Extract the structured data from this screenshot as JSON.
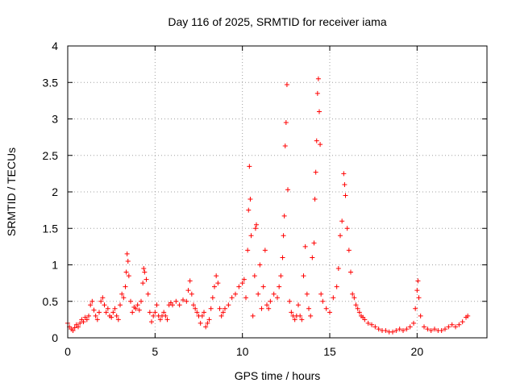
{
  "chart_data": {
    "type": "scatter",
    "title": "Day 116 of 2025, SRMTID for receiver iama",
    "xlabel": "GPS time / hours",
    "ylabel": "SRMTID / TECUs",
    "xlim": [
      0,
      24
    ],
    "ylim": [
      0,
      4
    ],
    "xticks": [
      0,
      5,
      10,
      15,
      20
    ],
    "yticks": [
      0,
      0.5,
      1,
      1.5,
      2,
      2.5,
      3,
      3.5,
      4
    ],
    "xtick_labels": [
      "0",
      "5",
      "10",
      "15",
      "20"
    ],
    "ytick_labels": [
      "0",
      "0.5",
      "1",
      "1.5",
      "2",
      "2.5",
      "3",
      "3.5",
      "4"
    ],
    "grid": true,
    "marker": "+",
    "color": "#ff0000",
    "series": [
      {
        "name": "SRMTID",
        "points": [
          [
            0.0,
            0.2
          ],
          [
            0.1,
            0.15
          ],
          [
            0.2,
            0.12
          ],
          [
            0.3,
            0.1
          ],
          [
            0.4,
            0.14
          ],
          [
            0.5,
            0.18
          ],
          [
            0.6,
            0.15
          ],
          [
            0.7,
            0.2
          ],
          [
            0.8,
            0.25
          ],
          [
            0.9,
            0.22
          ],
          [
            1.0,
            0.28
          ],
          [
            1.1,
            0.25
          ],
          [
            1.2,
            0.3
          ],
          [
            1.3,
            0.45
          ],
          [
            1.4,
            0.5
          ],
          [
            1.5,
            0.38
          ],
          [
            1.6,
            0.3
          ],
          [
            1.7,
            0.25
          ],
          [
            1.8,
            0.35
          ],
          [
            1.9,
            0.5
          ],
          [
            2.0,
            0.55
          ],
          [
            2.1,
            0.45
          ],
          [
            2.2,
            0.35
          ],
          [
            2.3,
            0.4
          ],
          [
            2.4,
            0.3
          ],
          [
            2.5,
            0.28
          ],
          [
            2.6,
            0.35
          ],
          [
            2.7,
            0.4
          ],
          [
            2.8,
            0.3
          ],
          [
            2.9,
            0.25
          ],
          [
            3.0,
            0.45
          ],
          [
            3.1,
            0.6
          ],
          [
            3.2,
            0.55
          ],
          [
            3.3,
            0.7
          ],
          [
            3.35,
            0.9
          ],
          [
            3.4,
            1.15
          ],
          [
            3.45,
            1.05
          ],
          [
            3.5,
            0.85
          ],
          [
            3.6,
            0.5
          ],
          [
            3.7,
            0.35
          ],
          [
            3.8,
            0.42
          ],
          [
            3.9,
            0.4
          ],
          [
            4.0,
            0.45
          ],
          [
            4.1,
            0.38
          ],
          [
            4.2,
            0.5
          ],
          [
            4.3,
            0.75
          ],
          [
            4.35,
            0.95
          ],
          [
            4.4,
            0.9
          ],
          [
            4.5,
            0.8
          ],
          [
            4.6,
            0.6
          ],
          [
            4.7,
            0.35
          ],
          [
            4.8,
            0.22
          ],
          [
            4.9,
            0.3
          ],
          [
            5.0,
            0.35
          ],
          [
            5.1,
            0.45
          ],
          [
            5.2,
            0.3
          ],
          [
            5.3,
            0.25
          ],
          [
            5.4,
            0.3
          ],
          [
            5.5,
            0.35
          ],
          [
            5.6,
            0.3
          ],
          [
            5.7,
            0.25
          ],
          [
            5.8,
            0.45
          ],
          [
            5.9,
            0.48
          ],
          [
            6.0,
            0.45
          ],
          [
            6.2,
            0.5
          ],
          [
            6.4,
            0.45
          ],
          [
            6.6,
            0.52
          ],
          [
            6.8,
            0.5
          ],
          [
            6.9,
            0.65
          ],
          [
            7.0,
            0.78
          ],
          [
            7.1,
            0.6
          ],
          [
            7.2,
            0.45
          ],
          [
            7.3,
            0.4
          ],
          [
            7.4,
            0.35
          ],
          [
            7.5,
            0.3
          ],
          [
            7.6,
            0.2
          ],
          [
            7.7,
            0.3
          ],
          [
            7.8,
            0.35
          ],
          [
            7.9,
            0.15
          ],
          [
            8.0,
            0.2
          ],
          [
            8.1,
            0.25
          ],
          [
            8.2,
            0.4
          ],
          [
            8.3,
            0.55
          ],
          [
            8.4,
            0.7
          ],
          [
            8.5,
            0.85
          ],
          [
            8.6,
            0.75
          ],
          [
            8.7,
            0.4
          ],
          [
            8.8,
            0.3
          ],
          [
            8.9,
            0.35
          ],
          [
            9.0,
            0.4
          ],
          [
            9.2,
            0.45
          ],
          [
            9.4,
            0.55
          ],
          [
            9.6,
            0.6
          ],
          [
            9.8,
            0.7
          ],
          [
            10.0,
            0.75
          ],
          [
            10.1,
            0.8
          ],
          [
            10.2,
            0.55
          ],
          [
            10.3,
            1.2
          ],
          [
            10.35,
            1.75
          ],
          [
            10.4,
            2.35
          ],
          [
            10.45,
            1.9
          ],
          [
            10.5,
            1.4
          ],
          [
            10.6,
            0.3
          ],
          [
            10.7,
            0.85
          ],
          [
            10.75,
            1.5
          ],
          [
            10.8,
            1.55
          ],
          [
            10.9,
            0.6
          ],
          [
            11.0,
            1.0
          ],
          [
            11.1,
            0.4
          ],
          [
            11.2,
            0.7
          ],
          [
            11.3,
            1.2
          ],
          [
            11.4,
            0.45
          ],
          [
            11.5,
            0.4
          ],
          [
            11.6,
            0.5
          ],
          [
            11.8,
            0.6
          ],
          [
            12.0,
            0.55
          ],
          [
            12.1,
            0.7
          ],
          [
            12.2,
            0.85
          ],
          [
            12.3,
            1.1
          ],
          [
            12.35,
            1.4
          ],
          [
            12.4,
            1.67
          ],
          [
            12.45,
            2.63
          ],
          [
            12.5,
            2.95
          ],
          [
            12.55,
            3.47
          ],
          [
            12.6,
            2.03
          ],
          [
            12.7,
            0.5
          ],
          [
            12.8,
            0.35
          ],
          [
            12.9,
            0.3
          ],
          [
            13.0,
            0.25
          ],
          [
            13.1,
            0.3
          ],
          [
            13.2,
            0.45
          ],
          [
            13.3,
            0.3
          ],
          [
            13.4,
            0.25
          ],
          [
            13.5,
            0.85
          ],
          [
            13.6,
            1.25
          ],
          [
            13.7,
            0.6
          ],
          [
            13.8,
            0.4
          ],
          [
            13.9,
            0.3
          ],
          [
            14.0,
            1.1
          ],
          [
            14.1,
            1.3
          ],
          [
            14.15,
            1.9
          ],
          [
            14.2,
            2.27
          ],
          [
            14.25,
            2.7
          ],
          [
            14.3,
            3.35
          ],
          [
            14.35,
            3.55
          ],
          [
            14.4,
            3.1
          ],
          [
            14.45,
            2.65
          ],
          [
            14.5,
            0.6
          ],
          [
            14.6,
            0.5
          ],
          [
            14.8,
            0.4
          ],
          [
            15.0,
            0.35
          ],
          [
            15.2,
            0.55
          ],
          [
            15.4,
            0.7
          ],
          [
            15.5,
            0.95
          ],
          [
            15.6,
            1.4
          ],
          [
            15.7,
            1.6
          ],
          [
            15.8,
            2.25
          ],
          [
            15.85,
            2.1
          ],
          [
            15.9,
            1.95
          ],
          [
            16.0,
            1.5
          ],
          [
            16.1,
            1.2
          ],
          [
            16.2,
            0.9
          ],
          [
            16.3,
            0.6
          ],
          [
            16.4,
            0.55
          ],
          [
            16.5,
            0.45
          ],
          [
            16.6,
            0.4
          ],
          [
            16.7,
            0.35
          ],
          [
            16.8,
            0.3
          ],
          [
            16.9,
            0.28
          ],
          [
            17.0,
            0.25
          ],
          [
            17.2,
            0.2
          ],
          [
            17.4,
            0.18
          ],
          [
            17.6,
            0.15
          ],
          [
            17.8,
            0.12
          ],
          [
            18.0,
            0.1
          ],
          [
            18.2,
            0.1
          ],
          [
            18.4,
            0.08
          ],
          [
            18.6,
            0.08
          ],
          [
            18.8,
            0.1
          ],
          [
            19.0,
            0.12
          ],
          [
            19.2,
            0.1
          ],
          [
            19.4,
            0.12
          ],
          [
            19.6,
            0.15
          ],
          [
            19.8,
            0.2
          ],
          [
            19.9,
            0.4
          ],
          [
            20.0,
            0.65
          ],
          [
            20.05,
            0.78
          ],
          [
            20.1,
            0.55
          ],
          [
            20.2,
            0.3
          ],
          [
            20.4,
            0.15
          ],
          [
            20.6,
            0.12
          ],
          [
            20.8,
            0.1
          ],
          [
            21.0,
            0.12
          ],
          [
            21.2,
            0.1
          ],
          [
            21.4,
            0.1
          ],
          [
            21.6,
            0.12
          ],
          [
            21.8,
            0.15
          ],
          [
            22.0,
            0.18
          ],
          [
            22.2,
            0.15
          ],
          [
            22.4,
            0.18
          ],
          [
            22.6,
            0.22
          ],
          [
            22.8,
            0.28
          ],
          [
            22.9,
            0.3
          ]
        ]
      }
    ]
  }
}
